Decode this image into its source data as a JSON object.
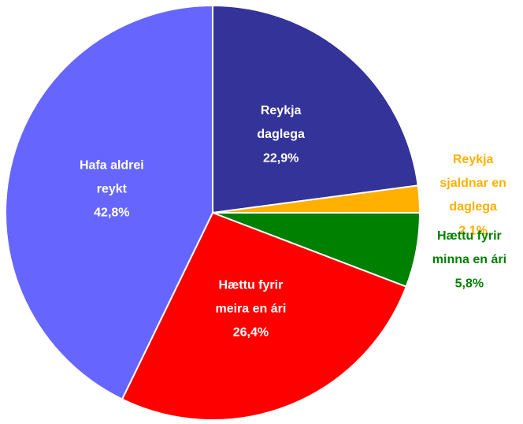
{
  "chart_data": {
    "type": "pie",
    "categories": [
      "Reykja\ndaglega",
      "Reykja\nsjaldnar en\ndaglega",
      "Hættu fyrir\nminna en ári",
      "Hættu fyrir\nmeira en ári",
      "Hafa aldrei\nreykt"
    ],
    "values": [
      22.9,
      2.1,
      5.8,
      26.4,
      42.8
    ],
    "value_labels": [
      "22,9%",
      "2,1%",
      "5,8%",
      "26,4%",
      "42,8%"
    ],
    "colors": [
      "#333399",
      "#ffb000",
      "#008000",
      "#ff0000",
      "#6666ff"
    ]
  }
}
